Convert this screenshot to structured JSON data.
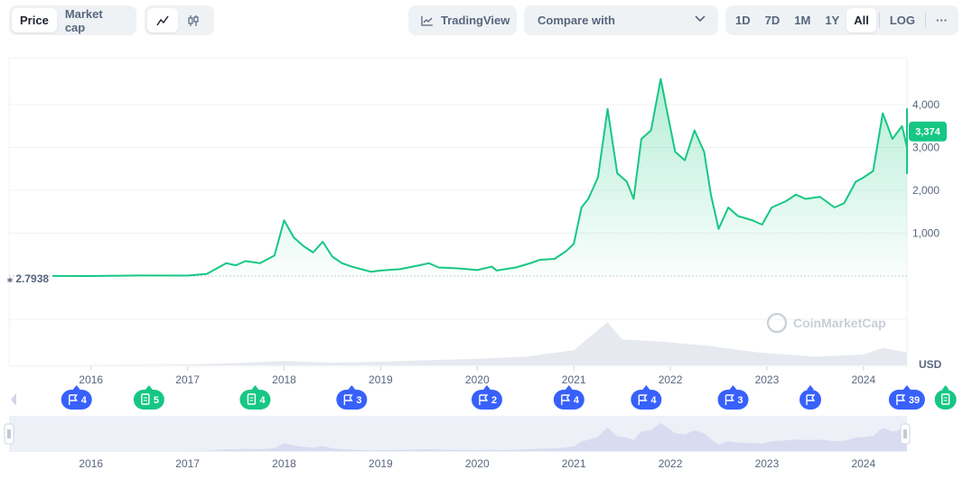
{
  "toolbar": {
    "price_label": "Price",
    "marketcap_label": "Market cap",
    "tradingview_label": "TradingView",
    "compare_label": "Compare with",
    "ranges": [
      "1D",
      "7D",
      "1M",
      "1Y",
      "All"
    ],
    "active_range": "All",
    "log_label": "LOG",
    "more_label": "···"
  },
  "chart_data": {
    "type": "area",
    "currency_label": "USD",
    "y_ticks": [
      1000,
      2000,
      3000,
      4000
    ],
    "y_tick_labels": [
      "1,000",
      "2,000",
      "3,000",
      "4,000"
    ],
    "ylim": [
      0,
      5000
    ],
    "x_ticks": [
      "2016",
      "2017",
      "2018",
      "2019",
      "2020",
      "2021",
      "2022",
      "2023",
      "2024"
    ],
    "x_range": [
      2015.6,
      2024.9
    ],
    "start_value_label": "2.7938",
    "current_value_label": "3,374",
    "watermark": "CoinMarketCap",
    "series": [
      {
        "points": [
          [
            2015.6,
            3
          ],
          [
            2016.0,
            1
          ],
          [
            2016.5,
            12
          ],
          [
            2017.0,
            10
          ],
          [
            2017.2,
            50
          ],
          [
            2017.4,
            300
          ],
          [
            2017.5,
            250
          ],
          [
            2017.6,
            350
          ],
          [
            2017.75,
            300
          ],
          [
            2017.9,
            480
          ],
          [
            2018.0,
            1300
          ],
          [
            2018.1,
            900
          ],
          [
            2018.2,
            700
          ],
          [
            2018.3,
            550
          ],
          [
            2018.4,
            800
          ],
          [
            2018.5,
            450
          ],
          [
            2018.6,
            300
          ],
          [
            2018.7,
            220
          ],
          [
            2018.9,
            100
          ],
          [
            2019.0,
            130
          ],
          [
            2019.2,
            160
          ],
          [
            2019.4,
            250
          ],
          [
            2019.5,
            300
          ],
          [
            2019.6,
            200
          ],
          [
            2019.8,
            180
          ],
          [
            2020.0,
            140
          ],
          [
            2020.15,
            220
          ],
          [
            2020.2,
            130
          ],
          [
            2020.4,
            200
          ],
          [
            2020.55,
            300
          ],
          [
            2020.65,
            380
          ],
          [
            2020.8,
            400
          ],
          [
            2020.92,
            580
          ],
          [
            2021.0,
            750
          ],
          [
            2021.08,
            1600
          ],
          [
            2021.15,
            1800
          ],
          [
            2021.25,
            2300
          ],
          [
            2021.35,
            3900
          ],
          [
            2021.45,
            2400
          ],
          [
            2021.55,
            2200
          ],
          [
            2021.62,
            1800
          ],
          [
            2021.7,
            3200
          ],
          [
            2021.8,
            3400
          ],
          [
            2021.9,
            4600
          ],
          [
            2021.97,
            3800
          ],
          [
            2022.05,
            2900
          ],
          [
            2022.15,
            2700
          ],
          [
            2022.25,
            3400
          ],
          [
            2022.35,
            2900
          ],
          [
            2022.42,
            1900
          ],
          [
            2022.5,
            1100
          ],
          [
            2022.6,
            1600
          ],
          [
            2022.7,
            1400
          ],
          [
            2022.85,
            1300
          ],
          [
            2022.95,
            1200
          ],
          [
            2023.05,
            1600
          ],
          [
            2023.2,
            1750
          ],
          [
            2023.3,
            1900
          ],
          [
            2023.4,
            1800
          ],
          [
            2023.55,
            1850
          ],
          [
            2023.7,
            1600
          ],
          [
            2023.8,
            1700
          ],
          [
            2023.92,
            2200
          ],
          [
            2024.0,
            2300
          ],
          [
            2024.1,
            2450
          ],
          [
            2024.2,
            3800
          ],
          [
            2024.3,
            3200
          ],
          [
            2024.4,
            3500
          ],
          [
            2024.5,
            3000
          ],
          [
            2024.6,
            2600
          ],
          [
            2024.7,
            2400
          ],
          [
            2024.78,
            2700
          ],
          [
            2024.82,
            3600
          ],
          [
            2024.86,
            3900
          ],
          [
            2024.9,
            3374
          ]
        ]
      }
    ],
    "volume_series": {
      "points": [
        [
          2015.6,
          0
        ],
        [
          2017.0,
          0.02
        ],
        [
          2017.5,
          0.05
        ],
        [
          2018.0,
          0.1
        ],
        [
          2018.5,
          0.06
        ],
        [
          2019.0,
          0.08
        ],
        [
          2019.5,
          0.12
        ],
        [
          2020.0,
          0.15
        ],
        [
          2020.5,
          0.2
        ],
        [
          2021.0,
          0.35
        ],
        [
          2021.35,
          1.0
        ],
        [
          2021.5,
          0.6
        ],
        [
          2021.9,
          0.55
        ],
        [
          2022.4,
          0.45
        ],
        [
          2022.9,
          0.3
        ],
        [
          2023.5,
          0.2
        ],
        [
          2024.0,
          0.25
        ],
        [
          2024.2,
          0.4
        ],
        [
          2024.6,
          0.3
        ],
        [
          2024.9,
          0.5
        ]
      ]
    },
    "events": [
      {
        "x": 2015.85,
        "label": "4",
        "kind": "flag",
        "color": "#3861fb"
      },
      {
        "x": 2016.6,
        "label": "5",
        "kind": "doc",
        "color": "#16c784"
      },
      {
        "x": 2017.7,
        "label": "4",
        "kind": "doc",
        "color": "#16c784"
      },
      {
        "x": 2018.7,
        "label": "3",
        "kind": "flag",
        "color": "#3861fb"
      },
      {
        "x": 2020.1,
        "label": "2",
        "kind": "flag",
        "color": "#3861fb"
      },
      {
        "x": 2020.95,
        "label": "4",
        "kind": "flag",
        "color": "#3861fb"
      },
      {
        "x": 2021.75,
        "label": "4",
        "kind": "flag",
        "color": "#3861fb"
      },
      {
        "x": 2022.65,
        "label": "3",
        "kind": "flag",
        "color": "#3861fb"
      },
      {
        "x": 2023.45,
        "label": "",
        "kind": "flag",
        "color": "#3861fb"
      },
      {
        "x": 2024.45,
        "label": "39",
        "kind": "flag",
        "color": "#3861fb"
      },
      {
        "x": 2024.85,
        "label": "",
        "kind": "doc",
        "color": "#16c784"
      }
    ],
    "colors": {
      "line": "#16c784",
      "fill": "#16c784",
      "badge": "#16c784"
    }
  }
}
